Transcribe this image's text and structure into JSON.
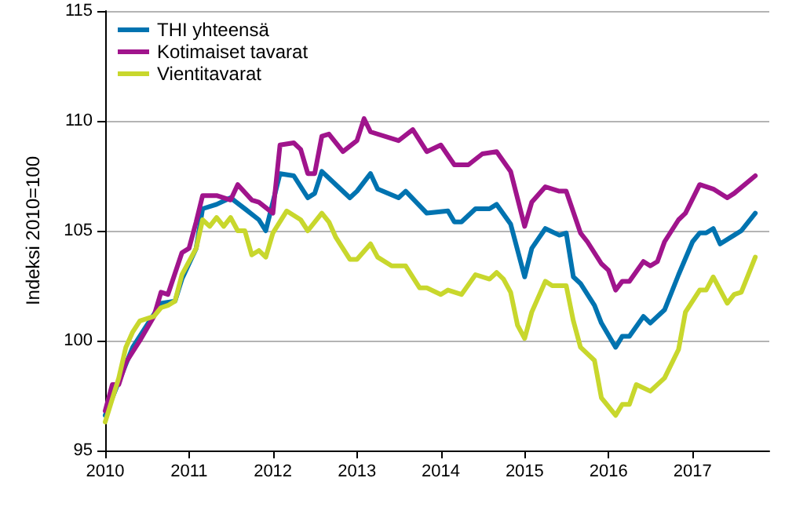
{
  "chart_data": {
    "type": "line",
    "ylabel": "Indeksi 2010=100",
    "xlim": [
      "2010-01",
      "2017-12"
    ],
    "xticks": [
      "2010",
      "2011",
      "2012",
      "2013",
      "2014",
      "2015",
      "2016",
      "2017"
    ],
    "ylim": [
      95,
      115
    ],
    "yticks": [
      95,
      100,
      105,
      110,
      115
    ],
    "grid": "y",
    "legend": "top left",
    "marker": "none",
    "line_style": "solid",
    "series": [
      {
        "name": "THI yhteensä",
        "color": "#0073b0",
        "x": [
          "2010-01",
          "2010-05",
          "2010-09",
          "2010-11",
          "2010-12",
          "2011-02",
          "2011-03",
          "2011-05",
          "2011-07",
          "2011-09",
          "2011-11",
          "2011-12",
          "2012-02",
          "2012-04",
          "2012-06",
          "2012-07",
          "2012-08",
          "2012-10",
          "2012-12",
          "2013-01",
          "2013-03",
          "2013-04",
          "2013-07",
          "2013-08",
          "2013-11",
          "2014-02",
          "2014-03",
          "2014-04",
          "2014-06",
          "2014-08",
          "2014-09",
          "2014-11",
          "2015-01",
          "2015-02",
          "2015-04",
          "2015-06",
          "2015-07",
          "2015-08",
          "2015-09",
          "2015-11",
          "2015-12",
          "2016-02",
          "2016-03",
          "2016-04",
          "2016-06",
          "2016-07",
          "2016-09",
          "2016-11",
          "2017-01",
          "2017-02",
          "2017-03",
          "2017-04",
          "2017-05",
          "2017-07",
          "2017-08",
          "2017-10"
        ],
        "values": [
          96.6,
          99.7,
          101.7,
          101.8,
          102.8,
          104.2,
          106.0,
          106.2,
          106.5,
          106.0,
          105.5,
          105.0,
          107.6,
          107.5,
          106.5,
          106.7,
          107.7,
          107.1,
          106.5,
          106.8,
          107.6,
          106.9,
          106.5,
          106.8,
          105.8,
          105.9,
          105.4,
          105.4,
          106.0,
          106.0,
          106.2,
          105.3,
          102.9,
          104.2,
          105.1,
          104.8,
          104.9,
          102.9,
          102.6,
          101.6,
          100.8,
          99.7,
          100.2,
          100.2,
          101.1,
          100.8,
          101.4,
          103.0,
          104.5,
          104.9,
          104.9,
          105.1,
          104.4,
          104.8,
          105.0,
          105.8
        ]
      },
      {
        "name": "Kotimaiset tavarat",
        "color": "#a0148c",
        "x": [
          "2010-01",
          "2010-02",
          "2010-03",
          "2010-04",
          "2010-06",
          "2010-08",
          "2010-09",
          "2010-10",
          "2010-12",
          "2011-01",
          "2011-02",
          "2011-03",
          "2011-05",
          "2011-07",
          "2011-08",
          "2011-10",
          "2011-11",
          "2012-01",
          "2012-02",
          "2012-04",
          "2012-05",
          "2012-06",
          "2012-07",
          "2012-08",
          "2012-09",
          "2012-11",
          "2013-01",
          "2013-02",
          "2013-03",
          "2013-07",
          "2013-09",
          "2013-11",
          "2014-01",
          "2014-03",
          "2014-05",
          "2014-07",
          "2014-09",
          "2014-11",
          "2015-01",
          "2015-02",
          "2015-04",
          "2015-06",
          "2015-07",
          "2015-09",
          "2015-10",
          "2015-12",
          "2016-01",
          "2016-02",
          "2016-03",
          "2016-04",
          "2016-06",
          "2016-07",
          "2016-08",
          "2016-09",
          "2016-11",
          "2016-12",
          "2017-02",
          "2017-04",
          "2017-06",
          "2017-07",
          "2017-10"
        ],
        "values": [
          96.8,
          98.0,
          98.0,
          99.0,
          100.0,
          101.1,
          102.2,
          102.1,
          104.0,
          104.2,
          105.4,
          106.6,
          106.6,
          106.4,
          107.1,
          106.4,
          106.3,
          105.8,
          108.9,
          109.0,
          108.7,
          107.6,
          107.6,
          109.3,
          109.4,
          108.6,
          109.1,
          110.1,
          109.5,
          109.1,
          109.6,
          108.6,
          108.9,
          108.0,
          108.0,
          108.5,
          108.6,
          107.7,
          105.2,
          106.3,
          107.0,
          106.8,
          106.8,
          104.9,
          104.5,
          103.5,
          103.2,
          102.3,
          102.7,
          102.7,
          103.6,
          103.4,
          103.6,
          104.5,
          105.5,
          105.8,
          107.1,
          106.9,
          106.5,
          106.7,
          107.5
        ]
      },
      {
        "name": "Vientitavarat",
        "color": "#c8d72d",
        "x": [
          "2010-01",
          "2010-03",
          "2010-04",
          "2010-05",
          "2010-06",
          "2010-08",
          "2010-09",
          "2010-10",
          "2010-11",
          "2010-12",
          "2011-02",
          "2011-03",
          "2011-04",
          "2011-05",
          "2011-06",
          "2011-07",
          "2011-08",
          "2011-09",
          "2011-10",
          "2011-11",
          "2011-12",
          "2012-01",
          "2012-03",
          "2012-05",
          "2012-06",
          "2012-08",
          "2012-09",
          "2012-10",
          "2012-12",
          "2013-01",
          "2013-03",
          "2013-04",
          "2013-06",
          "2013-08",
          "2013-10",
          "2013-11",
          "2014-01",
          "2014-02",
          "2014-04",
          "2014-06",
          "2014-08",
          "2014-09",
          "2014-10",
          "2014-11",
          "2014-12",
          "2015-01",
          "2015-02",
          "2015-04",
          "2015-05",
          "2015-07",
          "2015-08",
          "2015-09",
          "2015-11",
          "2015-12",
          "2016-02",
          "2016-03",
          "2016-04",
          "2016-05",
          "2016-07",
          "2016-09",
          "2016-11",
          "2016-12",
          "2017-02",
          "2017-03",
          "2017-04",
          "2017-06",
          "2017-07",
          "2017-08",
          "2017-10"
        ],
        "values": [
          96.3,
          98.3,
          99.7,
          100.4,
          100.9,
          101.1,
          101.5,
          101.6,
          101.8,
          103.0,
          104.2,
          105.5,
          105.2,
          105.6,
          105.2,
          105.6,
          105.0,
          105.0,
          103.9,
          104.1,
          103.8,
          104.9,
          105.9,
          105.5,
          105.0,
          105.8,
          105.4,
          104.7,
          103.7,
          103.7,
          104.4,
          103.8,
          103.4,
          103.4,
          102.4,
          102.4,
          102.1,
          102.3,
          102.1,
          103.0,
          102.8,
          103.1,
          102.8,
          102.2,
          100.7,
          100.1,
          101.3,
          102.7,
          102.5,
          102.5,
          100.9,
          99.7,
          99.1,
          97.4,
          96.6,
          97.1,
          97.1,
          98.0,
          97.7,
          98.3,
          99.6,
          101.3,
          102.3,
          102.3,
          102.9,
          101.7,
          102.1,
          102.2,
          103.8
        ]
      }
    ]
  }
}
